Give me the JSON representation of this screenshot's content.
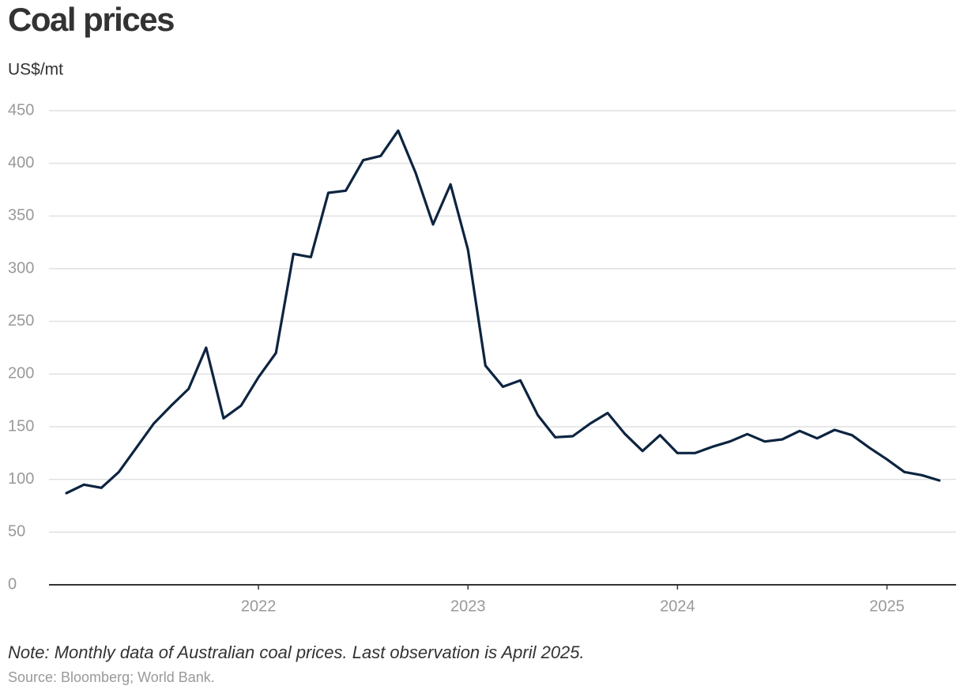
{
  "chart_data": {
    "type": "line",
    "title": "Coal prices",
    "y_label": "US$/mt",
    "note": "Note: Monthly data of Australian coal prices. Last observation is April 2025.",
    "source": "Source: Bloomberg; World Bank.",
    "x": [
      2021.0833,
      2021.1667,
      2021.25,
      2021.3333,
      2021.4167,
      2021.5,
      2021.5833,
      2021.6667,
      2021.75,
      2021.8333,
      2021.9167,
      2022,
      2022.0833,
      2022.1667,
      2022.25,
      2022.3333,
      2022.4167,
      2022.5,
      2022.5833,
      2022.6667,
      2022.75,
      2022.8333,
      2022.9167,
      2023,
      2023.0833,
      2023.1667,
      2023.25,
      2023.3333,
      2023.4167,
      2023.5,
      2023.5833,
      2023.6667,
      2023.75,
      2023.8333,
      2023.9167,
      2024,
      2024.0833,
      2024.1667,
      2024.25,
      2024.3333,
      2024.4167,
      2024.5,
      2024.5833,
      2024.6667,
      2024.75,
      2024.8333,
      2024.9167,
      2025,
      2025.0833,
      2025.1667,
      2025.25
    ],
    "series": [
      {
        "name": "Australian coal price",
        "color": "#0d2440",
        "values": [
          87,
          95,
          92,
          107,
          130,
          153,
          170,
          186,
          225,
          158,
          170,
          197,
          220,
          314,
          311,
          372,
          374,
          403,
          407,
          431,
          391,
          342,
          380,
          318,
          208,
          188,
          194,
          161,
          140,
          141,
          153,
          163,
          143,
          127,
          142,
          125,
          125,
          131,
          136,
          143,
          136,
          138,
          146,
          139,
          147,
          142,
          130,
          119,
          107,
          104,
          99
        ]
      }
    ],
    "xlim": [
      2021,
      2025.33
    ],
    "xticks": [
      2022,
      2023,
      2024,
      2025
    ],
    "ylim": [
      0,
      450
    ],
    "yticks": [
      0,
      50,
      100,
      150,
      200,
      250,
      300,
      350,
      400,
      450
    ],
    "grid": true
  }
}
